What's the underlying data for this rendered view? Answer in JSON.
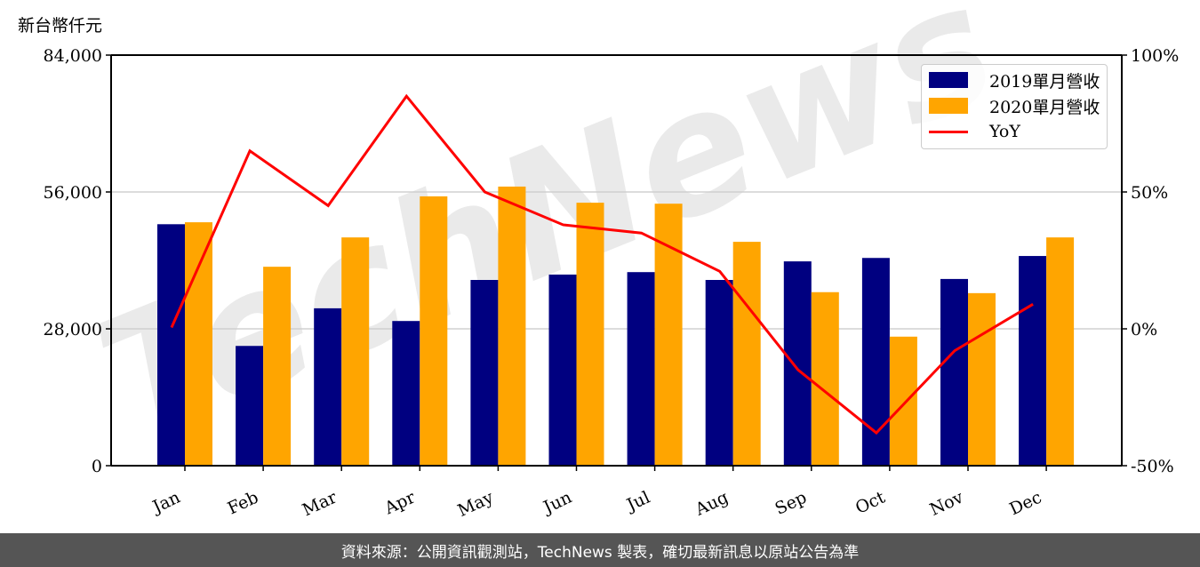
{
  "unit_label": "新台幣仟元",
  "footer": "資料來源：公開資訊觀測站，TechNews 製表，確切最新訊息以原站公告為準",
  "watermark": "TechNews",
  "legend": [
    {
      "label": "2019單月營收",
      "color": "#000080",
      "type": "bar"
    },
    {
      "label": "2020單月營收",
      "color": "#FFA500",
      "type": "bar"
    },
    {
      "label": "YoY",
      "color": "#FF0000",
      "type": "line"
    }
  ],
  "chart_data": {
    "type": "bar",
    "title": "",
    "xlabel": "",
    "ylabel": "新台幣仟元",
    "y2label": "YoY",
    "categories": [
      "Jan",
      "Feb",
      "Mar",
      "Apr",
      "May",
      "Jun",
      "Jul",
      "Aug",
      "Sep",
      "Oct",
      "Nov",
      "Dec"
    ],
    "series": [
      {
        "name": "2019單月營收",
        "type": "bar",
        "axis": "left",
        "color": "#000080",
        "values": [
          49400,
          24500,
          32200,
          29600,
          38000,
          39100,
          39600,
          38000,
          41800,
          42500,
          38200,
          42900
        ]
      },
      {
        "name": "2020單月營收",
        "type": "bar",
        "axis": "left",
        "color": "#FFA500",
        "values": [
          49800,
          40700,
          46700,
          55100,
          57100,
          53800,
          53600,
          45800,
          35500,
          26400,
          35300,
          46700
        ]
      },
      {
        "name": "YoY",
        "type": "line",
        "axis": "right",
        "color": "#FF0000",
        "values": [
          0.5,
          65,
          45,
          85,
          50,
          38,
          35,
          21,
          -15,
          -38,
          -8,
          9
        ]
      }
    ],
    "ylim": [
      0,
      84000
    ],
    "yticks": [
      "0",
      "28,000",
      "56,000",
      "84,000"
    ],
    "y2lim": [
      -50,
      100
    ],
    "y2ticks": [
      "-50%",
      "0%",
      "50%",
      "100%"
    ],
    "grid": "horizontal",
    "legend_position": "upper right"
  }
}
